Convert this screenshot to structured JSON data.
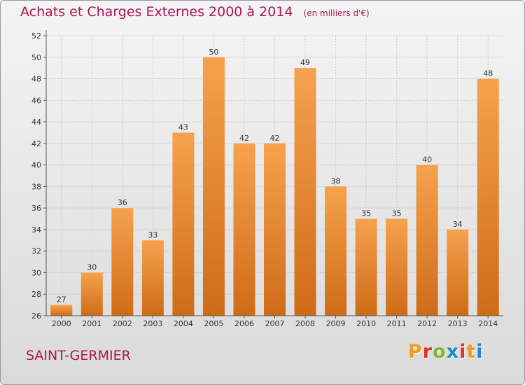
{
  "header": {
    "title": "Achats et Charges Externes 2000 à 2014",
    "unit": "(en milliers d'€)"
  },
  "footer": {
    "place": "SAINT-GERMIER",
    "brand_letters": [
      "P",
      "r",
      "o",
      "x",
      "i",
      "t",
      "i"
    ]
  },
  "colors": {
    "title": "#b01552",
    "bar_light": "#f6a24d",
    "bar_dark": "#cf6b17",
    "brand": [
      "#f39a1e",
      "#e5302a",
      "#7cb82f",
      "#1a8ad0",
      "#e5302a",
      "#f39a1e",
      "#1a8ad0"
    ]
  },
  "chart_data": {
    "type": "bar",
    "title": "Achats et Charges Externes 2000 à 2014",
    "xlabel": "",
    "ylabel": "",
    "categories": [
      "2000",
      "2001",
      "2002",
      "2003",
      "2004",
      "2005",
      "2006",
      "2007",
      "2008",
      "2009",
      "2010",
      "2011",
      "2012",
      "2013",
      "2014"
    ],
    "values": [
      27,
      30,
      36,
      33,
      43,
      50,
      42,
      42,
      49,
      38,
      35,
      35,
      40,
      34,
      48
    ],
    "ylim": [
      26,
      52
    ],
    "yticks": [
      26,
      28,
      30,
      32,
      34,
      36,
      38,
      40,
      42,
      44,
      46,
      48,
      50,
      52
    ],
    "grid": true
  }
}
